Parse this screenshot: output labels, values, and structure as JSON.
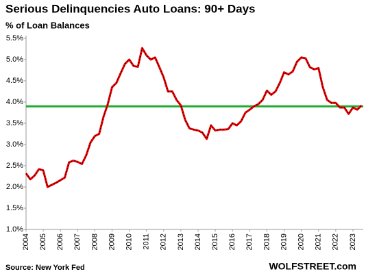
{
  "chart_data": {
    "type": "line",
    "title": "Serious Delinquencies Auto Loans: 90+ Days",
    "subtitle": "% of Loan Balances",
    "source": "Source: New York Fed",
    "brand": "WOLFSTREET.com",
    "x": [
      2004,
      2004.25,
      2004.5,
      2004.75,
      2005,
      2005.25,
      2005.5,
      2005.75,
      2006,
      2006.25,
      2006.5,
      2006.75,
      2007,
      2007.25,
      2007.5,
      2007.75,
      2008,
      2008.25,
      2008.5,
      2008.75,
      2009,
      2009.25,
      2009.5,
      2009.75,
      2010,
      2010.25,
      2010.5,
      2010.75,
      2011,
      2011.25,
      2011.5,
      2011.75,
      2012,
      2012.25,
      2012.5,
      2012.75,
      2013,
      2013.25,
      2013.5,
      2013.75,
      2014,
      2014.25,
      2014.5,
      2014.75,
      2015,
      2015.25,
      2015.5,
      2015.75,
      2016,
      2016.25,
      2016.5,
      2016.75,
      2017,
      2017.25,
      2017.5,
      2017.75,
      2018,
      2018.25,
      2018.5,
      2018.75,
      2019,
      2019.25,
      2019.5,
      2019.75,
      2020,
      2020.25,
      2020.5,
      2020.75,
      2021,
      2021.25,
      2021.5,
      2021.75,
      2022,
      2022.25,
      2022.5,
      2022.75,
      2023,
      2023.25,
      2023.5
    ],
    "series": [
      {
        "name": "Serious Delinquencies",
        "color": "#ee0000",
        "values": [
          2.32,
          2.18,
          2.27,
          2.42,
          2.39,
          2.0,
          2.05,
          2.1,
          2.16,
          2.22,
          2.58,
          2.62,
          2.59,
          2.54,
          2.75,
          3.05,
          3.2,
          3.25,
          3.65,
          3.95,
          4.35,
          4.45,
          4.68,
          4.9,
          5.0,
          4.85,
          4.83,
          5.27,
          5.1,
          5.0,
          5.05,
          4.82,
          4.58,
          4.25,
          4.25,
          4.05,
          3.92,
          3.58,
          3.38,
          3.35,
          3.33,
          3.28,
          3.13,
          3.45,
          3.33,
          3.35,
          3.35,
          3.36,
          3.5,
          3.45,
          3.55,
          3.75,
          3.82,
          3.9,
          3.95,
          4.05,
          4.27,
          4.17,
          4.25,
          4.45,
          4.7,
          4.65,
          4.72,
          4.95,
          5.05,
          5.03,
          4.82,
          4.77,
          4.8,
          4.35,
          4.05,
          3.98,
          3.98,
          3.87,
          3.87,
          3.72,
          3.87,
          3.82,
          3.92
        ]
      }
    ],
    "reference_line": {
      "value": 3.9,
      "color": "#22aa33"
    },
    "xlim": [
      2004,
      2023.6
    ],
    "xticks": [
      2004,
      2005,
      2006,
      2007,
      2008,
      2009,
      2010,
      2011,
      2012,
      2013,
      2014,
      2015,
      2016,
      2017,
      2018,
      2019,
      2020,
      2021,
      2022,
      2023
    ],
    "ylim": [
      1.0,
      5.5
    ],
    "yticks": [
      {
        "value": 1.0,
        "label": "1.0%"
      },
      {
        "value": 1.5,
        "label": "1.5%"
      },
      {
        "value": 2.0,
        "label": "2.0%"
      },
      {
        "value": 2.5,
        "label": "2.5%"
      },
      {
        "value": 3.0,
        "label": "3.0%"
      },
      {
        "value": 3.5,
        "label": "3.5%"
      },
      {
        "value": 4.0,
        "label": "4.0%"
      },
      {
        "value": 4.5,
        "label": "4.5%"
      },
      {
        "value": 5.0,
        "label": "5.0%"
      },
      {
        "value": 5.5,
        "label": "5.5%"
      }
    ],
    "grid": false
  }
}
